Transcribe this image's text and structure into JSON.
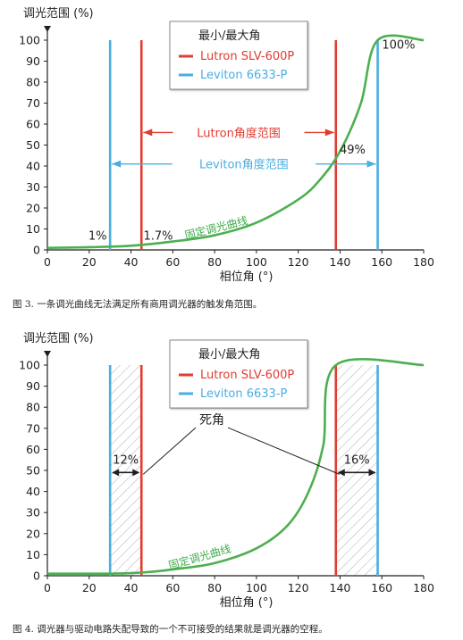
{
  "chart_data": [
    {
      "type": "line",
      "ylabel": "调光范围 (%)",
      "xlabel": "相位角 (°)",
      "xlim": [
        0,
        180
      ],
      "ylim": [
        0,
        100
      ],
      "xticks": [
        "0",
        "20",
        "40",
        "60",
        "80",
        "100",
        "120",
        "140",
        "160",
        "180"
      ],
      "yticks": [
        "0",
        "10",
        "20",
        "30",
        "40",
        "50",
        "60",
        "70",
        "80",
        "90",
        "100"
      ],
      "grid": false,
      "legend": {
        "title": "最小/最大角",
        "placement": "top-center",
        "entries": [
          {
            "name": "Lutron SLV-600P",
            "color": "#e03c31"
          },
          {
            "name": "Leviton 6633-P",
            "color": "#4aaee0"
          }
        ]
      },
      "curve": {
        "label": "固定调光曲线",
        "color": "#4caf50",
        "points": [
          [
            0,
            1
          ],
          [
            20,
            1.3
          ],
          [
            40,
            2
          ],
          [
            60,
            4
          ],
          [
            80,
            7
          ],
          [
            100,
            13
          ],
          [
            120,
            24
          ],
          [
            130,
            33
          ],
          [
            140,
            47
          ],
          [
            150,
            70
          ],
          [
            158,
            100
          ],
          [
            180,
            100
          ]
        ]
      },
      "vlines": [
        {
          "series": "Lutron SLV-600P",
          "x": 45,
          "color": "#e03c31"
        },
        {
          "series": "Lutron SLV-600P",
          "x": 138,
          "color": "#e03c31"
        },
        {
          "series": "Leviton 6633-P",
          "x": 30,
          "color": "#4aaee0"
        },
        {
          "series": "Leviton 6633-P",
          "x": 158,
          "color": "#4aaee0"
        }
      ],
      "range_arrows": [
        {
          "label": "Lutron角度范围",
          "from": 45,
          "to": 138,
          "y": 56,
          "color": "#e03c31"
        },
        {
          "label": "Leviton角度范围",
          "from": 30,
          "to": 158,
          "y": 41,
          "color": "#4aaee0"
        }
      ],
      "annotations": [
        {
          "text": "1%",
          "x": 24,
          "y": 5
        },
        {
          "text": "1.7%",
          "x": 53,
          "y": 5
        },
        {
          "text": "49%",
          "x": 146,
          "y": 46
        },
        {
          "text": "100%",
          "x": 168,
          "y": 96
        }
      ],
      "caption": "图 3. 一条调光曲线无法满足所有商用调光器的触发角范围。"
    },
    {
      "type": "line",
      "ylabel": "调光范围 (%)",
      "xlabel": "相位角 (°)",
      "xlim": [
        0,
        180
      ],
      "ylim": [
        0,
        100
      ],
      "xticks": [
        "0",
        "20",
        "40",
        "60",
        "80",
        "100",
        "120",
        "140",
        "160",
        "180"
      ],
      "yticks": [
        "0",
        "10",
        "20",
        "30",
        "40",
        "50",
        "60",
        "70",
        "80",
        "90",
        "100"
      ],
      "grid": false,
      "legend": {
        "title": "最小/最大角",
        "placement": "top-center",
        "entries": [
          {
            "name": "Lutron SLV-600P",
            "color": "#e03c31"
          },
          {
            "name": "Leviton 6633-P",
            "color": "#4aaee0"
          }
        ]
      },
      "curve": {
        "label": "固定调光曲线",
        "color": "#4caf50",
        "points": [
          [
            0,
            1
          ],
          [
            30,
            1
          ],
          [
            45,
            1.5
          ],
          [
            60,
            3
          ],
          [
            80,
            6
          ],
          [
            100,
            13
          ],
          [
            115,
            24
          ],
          [
            125,
            40
          ],
          [
            132,
            62
          ],
          [
            138,
            100
          ],
          [
            180,
            100
          ]
        ]
      },
      "vlines": [
        {
          "series": "Leviton 6633-P",
          "x": 30,
          "color": "#4aaee0"
        },
        {
          "series": "Lutron SLV-600P",
          "x": 45,
          "color": "#e03c31"
        },
        {
          "series": "Lutron SLV-600P",
          "x": 138,
          "color": "#e03c31"
        },
        {
          "series": "Leviton 6633-P",
          "x": 158,
          "color": "#4aaee0"
        }
      ],
      "dead_zones": [
        {
          "from": 30,
          "to": 45,
          "label": "12%"
        },
        {
          "from": 138,
          "to": 158,
          "label": "16%"
        }
      ],
      "dead_zone_label": "死角",
      "caption": "图 4. 调光器与驱动电路失配导致的一个不可接受的结果就是调光器的空程。"
    }
  ]
}
